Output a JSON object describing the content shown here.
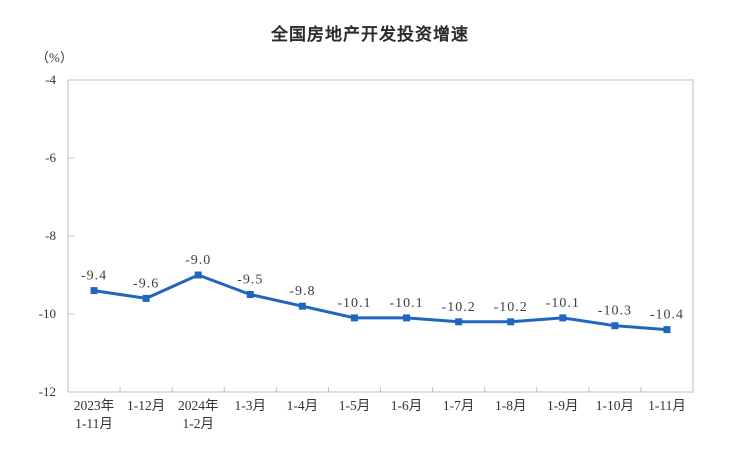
{
  "chart_data": {
    "type": "line",
    "title": "全国房地产开发投资增速",
    "unit_label": "（%）",
    "categories": [
      [
        "2023年",
        "1-11月"
      ],
      [
        "1-12月"
      ],
      [
        "2024年",
        "1-2月"
      ],
      [
        "1-3月"
      ],
      [
        "1-4月"
      ],
      [
        "1-5月"
      ],
      [
        "1-6月"
      ],
      [
        "1-7月"
      ],
      [
        "1-8月"
      ],
      [
        "1-9月"
      ],
      [
        "1-10月"
      ],
      [
        "1-11月"
      ]
    ],
    "values": [
      -9.4,
      -9.6,
      -9.0,
      -9.5,
      -9.8,
      -10.1,
      -10.1,
      -10.2,
      -10.2,
      -10.1,
      -10.3,
      -10.4
    ],
    "data_labels": [
      "-9.4",
      "-9.6",
      "-9.0",
      "-9.5",
      "-9.8",
      "-10.1",
      "-10.1",
      "-10.2",
      "-10.2",
      "-10.1",
      "-10.3",
      "-10.4"
    ],
    "xlabel": "",
    "ylabel": "",
    "ylim": [
      -12,
      -4
    ],
    "yticks": [
      "-4",
      "-6",
      "-8",
      "-10",
      "-12"
    ],
    "ytick_values": [
      -4,
      -6,
      -8,
      -10,
      -12
    ],
    "grid": false,
    "legend": "none",
    "colors": {
      "line": "#2166BE",
      "marker": "#2166BE",
      "data_label_text": "#404040",
      "axis_text": "#333333",
      "border": "#bfbfbf",
      "title_text": "#2b2b2b",
      "background": "#ffffff"
    }
  }
}
